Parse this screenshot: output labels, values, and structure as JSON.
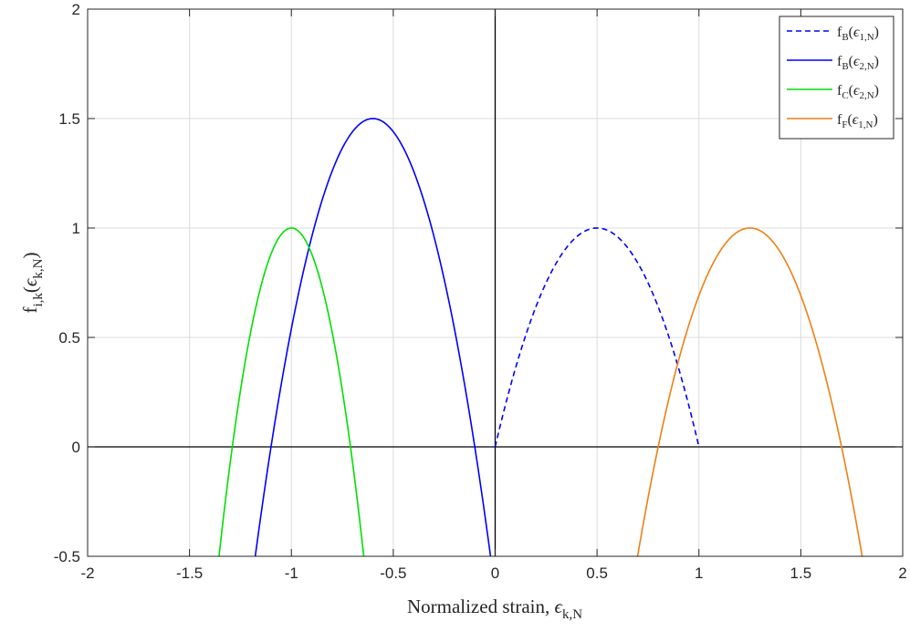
{
  "chart_data": {
    "type": "line",
    "xlabel": {
      "main": "Normalized strain, ",
      "sym": "ϵ",
      "sub": "k,N"
    },
    "ylabel": {
      "main": "f",
      "sub": "i,k",
      "mid": "(",
      "sym": "ϵ",
      "sub2": "k,N",
      "close": ")"
    },
    "xlim": [
      -2,
      2
    ],
    "ylim": [
      -0.5,
      2
    ],
    "xticks": [
      -2,
      -1.5,
      -1,
      -0.5,
      0,
      0.5,
      1,
      1.5,
      2
    ],
    "xtick_labels": [
      "-2",
      "-1.5",
      "-1",
      "-0.5",
      "0",
      "0.5",
      "1",
      "1.5",
      "2"
    ],
    "yticks": [
      -0.5,
      0,
      0.5,
      1,
      1.5,
      2
    ],
    "ytick_labels": [
      "-0.5",
      "0",
      "0.5",
      "1",
      "1.5",
      "2"
    ],
    "grid": true,
    "legend_position": "top-right",
    "series": [
      {
        "name": "fB(ϵ1,N)",
        "label": {
          "f": "f",
          "fsub": "B",
          "open": "(",
          "sym": "ϵ",
          "sub": "1,N",
          "close": ")"
        },
        "color": "#0000ff",
        "dash": true,
        "vertex_x": 0.5,
        "vertex_y": 1.0,
        "roots": [
          0.0,
          1.0
        ],
        "x_range": [
          0.0,
          1.0
        ]
      },
      {
        "name": "fB(ϵ2,N)",
        "label": {
          "f": "f",
          "fsub": "B",
          "open": "(",
          "sym": "ϵ",
          "sub": "2,N",
          "close": ")"
        },
        "color": "#0000ff",
        "dash": false,
        "vertex_x": -0.6,
        "vertex_y": 1.5,
        "roots": [
          -1.1,
          -0.1
        ],
        "x_range": [
          -1.2,
          0.0
        ]
      },
      {
        "name": "fC(ϵ2,N)",
        "label": {
          "f": "f",
          "fsub": "C",
          "open": "(",
          "sym": "ϵ",
          "sub": "2,N",
          "close": ")"
        },
        "color": "#00e000",
        "dash": false,
        "vertex_x": -1.0,
        "vertex_y": 1.0,
        "roots": [
          -1.29,
          -0.71
        ],
        "x_range": [
          -1.4,
          -0.6
        ]
      },
      {
        "name": "fF(ϵ1,N)",
        "label": {
          "f": "f",
          "fsub": "F",
          "open": "(",
          "sym": "ϵ",
          "sub": "1,N",
          "close": ")"
        },
        "color": "#f07f13",
        "dash": false,
        "vertex_x": 1.25,
        "vertex_y": 1.0,
        "roots": [
          0.8,
          1.7
        ],
        "x_range": [
          0.65,
          1.85
        ]
      }
    ]
  }
}
